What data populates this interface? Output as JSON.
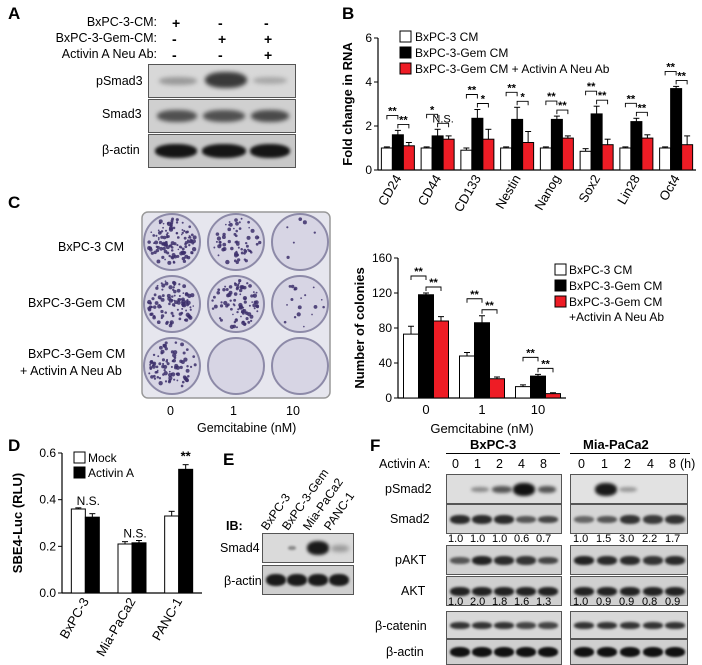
{
  "panelA": {
    "letter": "A",
    "conditions": [
      "BxPC-3-CM:",
      "BxPC-3-Gem-CM:",
      "Activin A Neu Ab:"
    ],
    "signs": [
      [
        "+",
        "-",
        "-"
      ],
      [
        "-",
        "+",
        "+"
      ],
      [
        "-",
        "-",
        "+"
      ]
    ],
    "blots": [
      "pSmad3",
      "Smad3",
      "β-actin"
    ]
  },
  "panelB": {
    "letter": "B",
    "legend": [
      "BxPC-3 CM",
      "BxPC-3-Gem CM",
      "BxPC-3-Gem CM + Activin A Neu Ab"
    ],
    "colors": {
      "white": "#ffffff",
      "black": "#000000",
      "red": "#ee1c25"
    },
    "chart_data": {
      "type": "bar",
      "ylabel": "Fold change in RNA",
      "ylim": [
        0,
        6
      ],
      "yticks": [
        0,
        2,
        4,
        6
      ],
      "categories": [
        "CD24",
        "CD44",
        "CD133",
        "Nestin",
        "Nanog",
        "Sox2",
        "Lin28",
        "Oct4"
      ],
      "series": [
        {
          "name": "BxPC-3 CM",
          "values": [
            1.0,
            1.0,
            0.9,
            1.0,
            1.0,
            0.85,
            1.0,
            1.0
          ],
          "errors": [
            0.05,
            0.05,
            0.1,
            0.05,
            0.05,
            0.12,
            0.05,
            0.05
          ]
        },
        {
          "name": "BxPC-3-Gem CM",
          "values": [
            1.6,
            1.55,
            2.35,
            2.3,
            2.3,
            2.55,
            2.2,
            3.7
          ],
          "errors": [
            0.2,
            0.3,
            0.4,
            0.55,
            0.15,
            0.35,
            0.15,
            0.1
          ]
        },
        {
          "name": "BxPC-3-Gem CM + Activin A Neu Ab",
          "values": [
            1.1,
            1.4,
            1.4,
            1.25,
            1.45,
            1.15,
            1.45,
            1.15
          ],
          "errors": [
            0.15,
            0.15,
            0.45,
            0.5,
            0.1,
            0.25,
            0.15,
            0.4
          ]
        }
      ],
      "annotations": [
        {
          "cat": 0,
          "pair": "01",
          "text": "**"
        },
        {
          "cat": 0,
          "pair": "12",
          "text": "**"
        },
        {
          "cat": 1,
          "pair": "01",
          "text": "*"
        },
        {
          "cat": 1,
          "pair": "12",
          "text": "N.S."
        },
        {
          "cat": 2,
          "pair": "01",
          "text": "**"
        },
        {
          "cat": 2,
          "pair": "12",
          "text": "*"
        },
        {
          "cat": 3,
          "pair": "01",
          "text": "**"
        },
        {
          "cat": 3,
          "pair": "12",
          "text": "*"
        },
        {
          "cat": 4,
          "pair": "01",
          "text": "**"
        },
        {
          "cat": 4,
          "pair": "12",
          "text": "**"
        },
        {
          "cat": 5,
          "pair": "01",
          "text": "**"
        },
        {
          "cat": 5,
          "pair": "12",
          "text": "**"
        },
        {
          "cat": 6,
          "pair": "01",
          "text": "**"
        },
        {
          "cat": 6,
          "pair": "12",
          "text": "**"
        },
        {
          "cat": 7,
          "pair": "01",
          "text": "**"
        },
        {
          "cat": 7,
          "pair": "12",
          "text": "**"
        }
      ]
    }
  },
  "panelC": {
    "letter": "C",
    "row_labels": [
      "BxPC-3 CM",
      "BxPC-3-Gem CM",
      "BxPC-3-Gem CM",
      "+ Activin A Neu Ab"
    ],
    "col_labels": [
      "0",
      "1",
      "10"
    ],
    "xlabel": "Gemcitabine (nM)",
    "colony_density": [
      [
        1.0,
        0.55,
        0.05
      ],
      [
        0.85,
        0.75,
        0.15
      ],
      [
        0.7,
        0.0,
        0.0
      ]
    ],
    "legend": [
      "BxPC-3 CM",
      "BxPC-3-Gem CM",
      "BxPC-3-Gem CM",
      "+Activin A Neu Ab"
    ],
    "chart_data": {
      "type": "bar",
      "ylabel": "Number of colonies",
      "xlabel": "Gemcitabine (nM)",
      "ylim": [
        0,
        160
      ],
      "yticks": [
        0,
        40,
        80,
        120,
        160
      ],
      "categories": [
        "0",
        "1",
        "10"
      ],
      "series": [
        {
          "name": "BxPC-3 CM",
          "values": [
            73,
            48,
            13
          ],
          "errors": [
            9,
            4,
            2
          ]
        },
        {
          "name": "BxPC-3-Gem CM",
          "values": [
            118,
            86,
            25
          ],
          "errors": [
            2,
            8,
            2
          ]
        },
        {
          "name": "BxPC-3-Gem CM +Activin A Neu Ab",
          "values": [
            88,
            22,
            5
          ],
          "errors": [
            5,
            2,
            1
          ]
        }
      ],
      "annotations": [
        {
          "cat": 0,
          "pair": "01",
          "text": "**"
        },
        {
          "cat": 0,
          "pair": "12",
          "text": "**"
        },
        {
          "cat": 1,
          "pair": "01",
          "text": "**"
        },
        {
          "cat": 1,
          "pair": "12",
          "text": "**"
        },
        {
          "cat": 2,
          "pair": "01",
          "text": "**"
        },
        {
          "cat": 2,
          "pair": "12",
          "text": "**"
        }
      ]
    }
  },
  "panelD": {
    "letter": "D",
    "legend": [
      "Mock",
      "Activin A"
    ],
    "chart_data": {
      "type": "bar",
      "ylabel": "SBE4-Luc (RLU)",
      "ylim": [
        0,
        0.6
      ],
      "yticks": [
        0,
        0.2,
        0.4,
        0.6
      ],
      "ytick_labels": [
        "0.0",
        "0.2",
        "0.4",
        "0.6"
      ],
      "categories": [
        "BxPC-3",
        "Mia-PaCa2",
        "PANC-1"
      ],
      "series": [
        {
          "name": "Mock",
          "values": [
            0.36,
            0.21,
            0.33
          ],
          "errors": [
            0.005,
            0.01,
            0.02
          ]
        },
        {
          "name": "Activin A",
          "values": [
            0.325,
            0.215,
            0.53
          ],
          "errors": [
            0.015,
            0.01,
            0.02
          ]
        }
      ],
      "annotations": [
        {
          "cat": 0,
          "text": "N.S."
        },
        {
          "cat": 1,
          "text": "N.S."
        },
        {
          "cat": 2,
          "text": "**"
        }
      ]
    }
  },
  "panelE": {
    "letter": "E",
    "lanes": [
      "BxPC-3",
      "BxPC-3-Gem",
      "Mia-PaCa2",
      "PANC-1"
    ],
    "ib_label": "IB:",
    "blots": [
      "Smad4",
      "β-actin"
    ]
  },
  "panelF": {
    "letter": "F",
    "cell_lines": [
      "BxPC-3",
      "Mia-PaCa2"
    ],
    "activin_label": "Activin A:",
    "timepoints": [
      "0",
      "1",
      "2",
      "4",
      "8"
    ],
    "unit": "(h)",
    "blots": [
      "pSmad2",
      "Smad2",
      "pAKT",
      "AKT",
      "β-catenin",
      "β-actin"
    ],
    "quant_smad2": {
      "bxpc3": [
        "1.0",
        "1.0",
        "1.0",
        "0.6",
        "0.7"
      ],
      "miapaca2": [
        "1.0",
        "1.5",
        "3.0",
        "2.2",
        "1.7"
      ]
    },
    "quant_akt": {
      "bxpc3": [
        "1.0",
        "2.0",
        "1.8",
        "1.6",
        "1.3"
      ],
      "miapaca2": [
        "1.0",
        "0.9",
        "0.9",
        "0.8",
        "0.9"
      ]
    }
  }
}
